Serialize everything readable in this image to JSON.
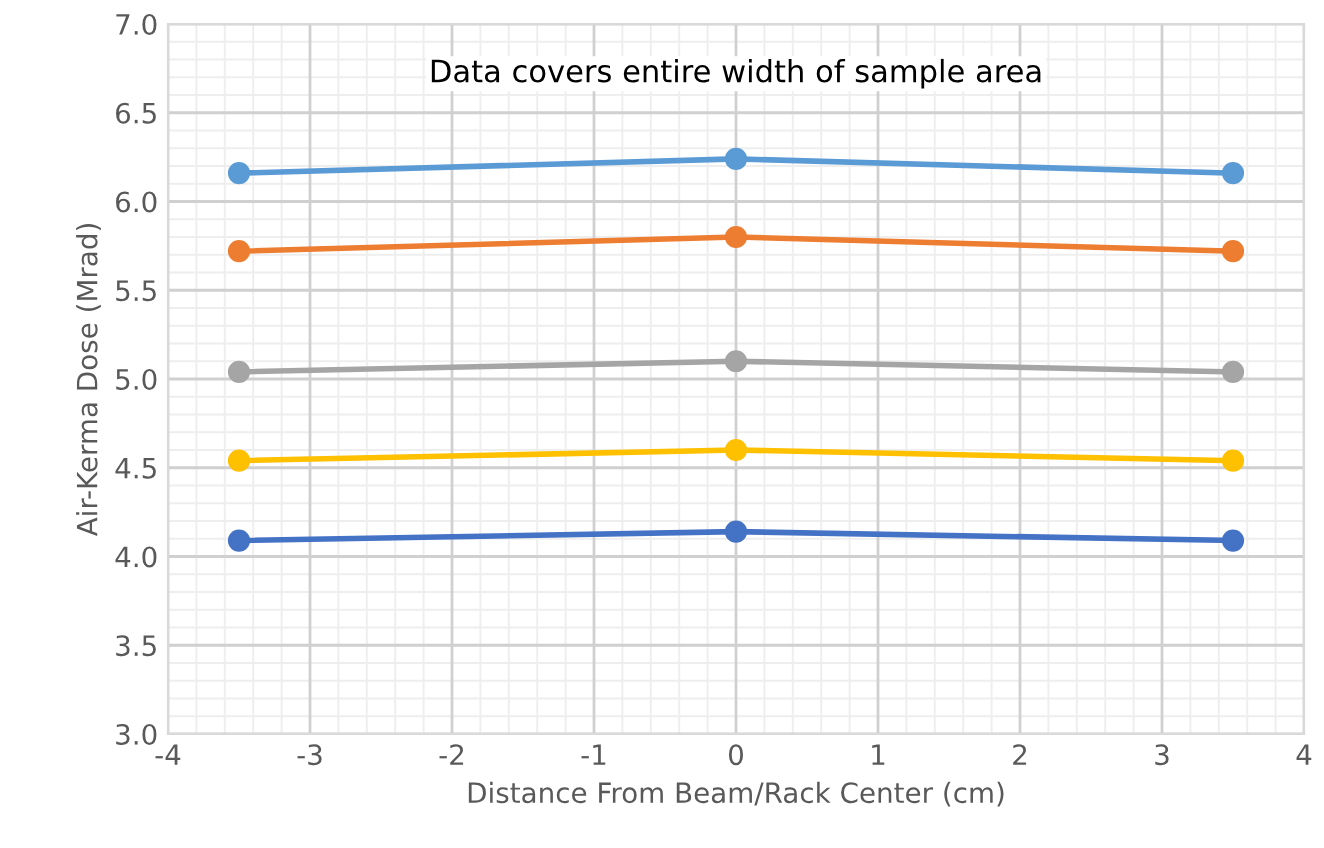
{
  "chart_data": {
    "type": "line",
    "xlabel": "Distance From Beam/Rack Center (cm)",
    "ylabel": "Air-Kerma Dose (Mrad)",
    "annotations": [
      "Data covers entire width of sample area"
    ],
    "x": [
      -3.5,
      0,
      3.5
    ],
    "series": [
      {
        "color": "#5b9bd5",
        "values": [
          6.16,
          6.24,
          6.16
        ]
      },
      {
        "color": "#ed7d31",
        "values": [
          5.72,
          5.8,
          5.72
        ]
      },
      {
        "color": "#a5a5a5",
        "values": [
          5.04,
          5.1,
          5.04
        ]
      },
      {
        "color": "#ffc000",
        "values": [
          4.54,
          4.6,
          4.54
        ]
      },
      {
        "color": "#4472c4",
        "values": [
          4.09,
          4.14,
          4.09
        ]
      }
    ],
    "xlim": [
      -4,
      4
    ],
    "xticks": [
      -4,
      -3,
      -2,
      -1,
      0,
      1,
      2,
      3,
      4
    ],
    "ylim": [
      3.0,
      7.0
    ],
    "yticks": [
      {
        "value": 3.0,
        "label": "3.0"
      },
      {
        "value": 3.5,
        "label": "3.5"
      },
      {
        "value": 4.0,
        "label": "4.0"
      },
      {
        "value": 4.5,
        "label": "4.5"
      },
      {
        "value": 5.0,
        "label": "5.0"
      },
      {
        "value": 5.5,
        "label": "5.5"
      },
      {
        "value": 6.0,
        "label": "6.0"
      },
      {
        "value": 6.5,
        "label": "6.5"
      },
      {
        "value": 7.0,
        "label": "7.0"
      }
    ],
    "grid": true,
    "marker": "circle",
    "line_style": "solid"
  }
}
